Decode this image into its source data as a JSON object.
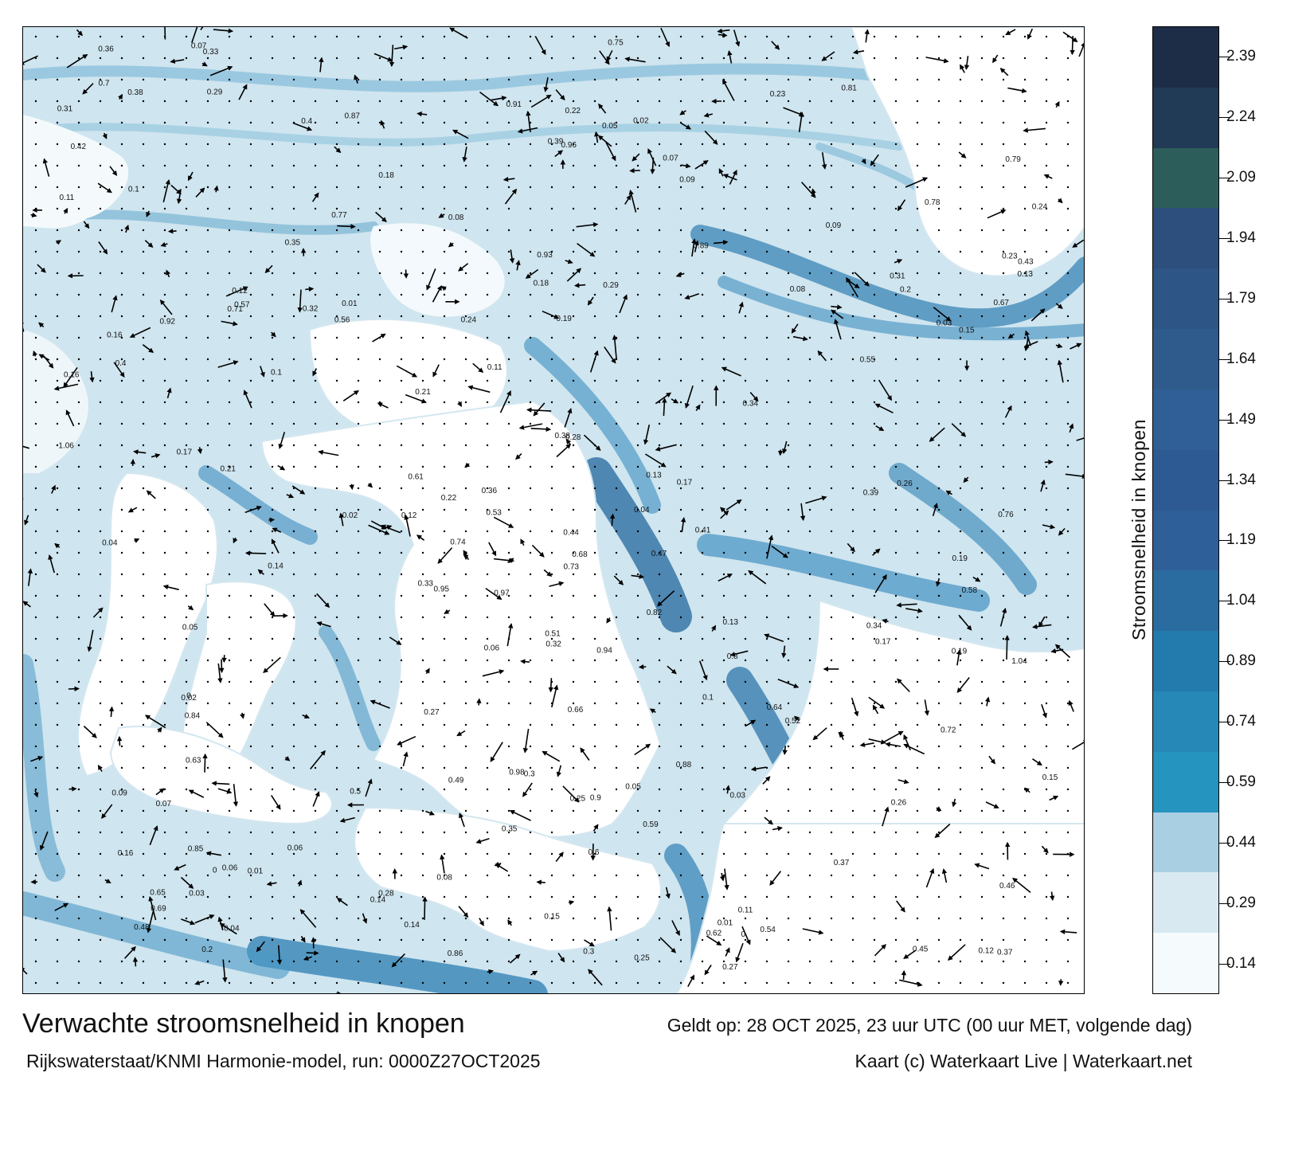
{
  "title": "Verwachte stroomsnelheid in knopen",
  "valid_time": "Geldt op: 28 OCT 2025, 23 uur UTC (00 uur MET, volgende dag)",
  "model_run": "Rijkswaterstaat/KNMI Harmonie-model, run: 0000Z27OCT2025",
  "credits": "Kaart (c) Waterkaart Live | Waterkaart.net",
  "colorbar": {
    "label": "Stroomsnelheid in knopen",
    "ticks": [
      "0.14",
      "0.29",
      "0.44",
      "0.59",
      "0.74",
      "0.89",
      "1.04",
      "1.19",
      "1.34",
      "1.49",
      "1.64",
      "1.79",
      "1.94",
      "2.09",
      "2.24",
      "2.39"
    ],
    "colors": [
      "#f5fafd",
      "#d8e9f2",
      "#a9cfe2",
      "#2594bf",
      "#2588b6",
      "#237aac",
      "#2a6c9f",
      "#2f5f99",
      "#2d5a93",
      "#2f5f96",
      "#2e5b8c",
      "#2d5585",
      "#2c4f7d",
      "#2d5d5b",
      "#213a55",
      "#1e2d47"
    ]
  },
  "water_color": "#2b8cc0",
  "land_color": "#ffffff",
  "arrow_color": "#000000",
  "map_labels": [
    {
      "text": "0.3"
    },
    {
      "text": "0.16"
    },
    {
      "text": "0.19"
    },
    {
      "text": "0.22"
    },
    {
      "text": "0.09"
    },
    {
      "text": "0.14"
    },
    {
      "text": "0.17"
    },
    {
      "text": "0.05"
    },
    {
      "text": "0.06"
    },
    {
      "text": "0.1"
    },
    {
      "text": "0.15"
    },
    {
      "text": "0.13"
    },
    {
      "text": "0.25"
    },
    {
      "text": "0.21"
    },
    {
      "text": "0.23"
    },
    {
      "text": "0.43"
    },
    {
      "text": "0.44"
    },
    {
      "text": "0.37"
    },
    {
      "text": "0.29"
    },
    {
      "text": "0.26"
    },
    {
      "text": "0.47"
    },
    {
      "text": "0.34"
    },
    {
      "text": "0.51"
    },
    {
      "text": "0.42"
    },
    {
      "text": "0.54"
    },
    {
      "text": "0.55"
    },
    {
      "text": "0.75"
    },
    {
      "text": "0.67"
    },
    {
      "text": "0.69"
    },
    {
      "text": "0.68"
    },
    {
      "text": "0.64"
    },
    {
      "text": "0.52"
    },
    {
      "text": "0.4"
    },
    {
      "text": "0.33"
    },
    {
      "text": "0.31"
    },
    {
      "text": "0.48"
    },
    {
      "text": "0.35"
    },
    {
      "text": "0.56"
    },
    {
      "text": "0.61"
    },
    {
      "text": "0.62"
    },
    {
      "text": "0.72"
    },
    {
      "text": "0.86"
    },
    {
      "text": "0.79"
    },
    {
      "text": "0.84"
    },
    {
      "text": "0.9"
    },
    {
      "text": "0.91"
    },
    {
      "text": "0.95"
    },
    {
      "text": "0.92"
    },
    {
      "text": "0.96"
    },
    {
      "text": "1.04"
    },
    {
      "text": "0.98"
    },
    {
      "text": "0.97"
    },
    {
      "text": "0.71"
    },
    {
      "text": "0.58"
    },
    {
      "text": "0.59"
    },
    {
      "text": "0.49"
    },
    {
      "text": "0.81"
    },
    {
      "text": "0.77"
    },
    {
      "text": "0.76"
    },
    {
      "text": "0.53"
    },
    {
      "text": "0.45"
    },
    {
      "text": "0.63"
    },
    {
      "text": "0.57"
    },
    {
      "text": "0.41"
    },
    {
      "text": "0.28"
    },
    {
      "text": "0.27"
    },
    {
      "text": "0.24"
    },
    {
      "text": "0.2"
    },
    {
      "text": "0.18"
    },
    {
      "text": "0.12"
    },
    {
      "text": "0.11"
    },
    {
      "text": "0.08"
    },
    {
      "text": "0.07"
    },
    {
      "text": "0.04"
    },
    {
      "text": "0.03"
    },
    {
      "text": "0.02"
    },
    {
      "text": "0.01"
    },
    {
      "text": "0"
    },
    {
      "text": "0.36"
    },
    {
      "text": "0.39"
    },
    {
      "text": "0.38"
    },
    {
      "text": "0.32"
    },
    {
      "text": "0.46"
    },
    {
      "text": "0.5"
    },
    {
      "text": "0.65"
    },
    {
      "text": "0.74"
    },
    {
      "text": "0.78"
    },
    {
      "text": "0.82"
    },
    {
      "text": "0.66"
    },
    {
      "text": "0.6"
    },
    {
      "text": "0.87"
    },
    {
      "text": "0.88"
    },
    {
      "text": "0.89"
    },
    {
      "text": "0.94"
    },
    {
      "text": "0.7"
    },
    {
      "text": "0.73"
    },
    {
      "text": "0.8"
    },
    {
      "text": "0.85"
    },
    {
      "text": "0.93"
    },
    {
      "text": "1.06"
    },
    {
      "text": "0.14"
    },
    {
      "text": "0.19"
    },
    {
      "text": "0.15"
    },
    {
      "text": "0.17"
    },
    {
      "text": "0.16"
    },
    {
      "text": "0.13"
    },
    {
      "text": "0.11"
    },
    {
      "text": "0.12"
    },
    {
      "text": "0.1"
    },
    {
      "text": "0.08"
    },
    {
      "text": "0.09"
    },
    {
      "text": "0.06"
    },
    {
      "text": "0.07"
    },
    {
      "text": "0.05"
    },
    {
      "text": "0.04"
    },
    {
      "text": "0.03"
    },
    {
      "text": "0.02"
    },
    {
      "text": "0.01"
    },
    {
      "text": "0"
    },
    {
      "text": "0.2"
    },
    {
      "text": "0.21"
    },
    {
      "text": "0.22"
    },
    {
      "text": "0.23"
    },
    {
      "text": "0.24"
    },
    {
      "text": "0.25"
    },
    {
      "text": "0.26"
    },
    {
      "text": "0.27"
    },
    {
      "text": "0.28"
    },
    {
      "text": "0.29"
    },
    {
      "text": "0.3"
    },
    {
      "text": "0.31"
    },
    {
      "text": "0.32"
    },
    {
      "text": "0.33"
    },
    {
      "text": "0.34"
    },
    {
      "text": "0.35"
    },
    {
      "text": "0.36"
    },
    {
      "text": "0.37"
    },
    {
      "text": "0.38"
    },
    {
      "text": "0.39"
    },
    {
      "text": "0.4"
    },
    {
      "text": "0.18"
    },
    {
      "text": "0.17"
    },
    {
      "text": "0.16"
    },
    {
      "text": "0.15"
    },
    {
      "text": "0.14"
    },
    {
      "text": "0.13"
    },
    {
      "text": "0.12"
    },
    {
      "text": "0.11"
    },
    {
      "text": "0.1"
    },
    {
      "text": "0.09"
    },
    {
      "text": "0.08"
    },
    {
      "text": "0.07"
    },
    {
      "text": "0.06"
    },
    {
      "text": "0.05"
    },
    {
      "text": "0.04"
    },
    {
      "text": "0.03"
    },
    {
      "text": "0.02"
    },
    {
      "text": "0.01"
    },
    {
      "text": "0"
    },
    {
      "text": "0.19"
    }
  ]
}
